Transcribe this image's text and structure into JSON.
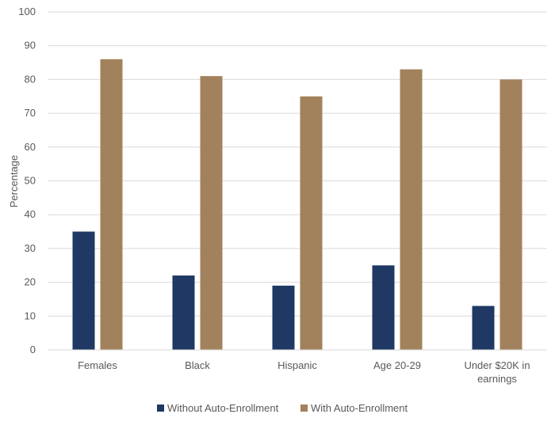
{
  "chart_data": {
    "type": "bar",
    "title": "",
    "xlabel": "",
    "ylabel": "Percentage",
    "ylim": [
      0,
      100
    ],
    "yticks": [
      0,
      10,
      20,
      30,
      40,
      50,
      60,
      70,
      80,
      90,
      100
    ],
    "grid": true,
    "legend_position": "bottom",
    "categories": [
      "Females",
      "Black",
      "Hispanic",
      "Age 20-29",
      "Under $20K in earnings"
    ],
    "series": [
      {
        "name": "Without Auto-Enrollment",
        "color": "#1f3864",
        "values": [
          35,
          22,
          19,
          25,
          13
        ]
      },
      {
        "name": "With Auto-Enrollment",
        "color": "#a2825c",
        "values": [
          86,
          81,
          75,
          83,
          80
        ]
      }
    ]
  }
}
